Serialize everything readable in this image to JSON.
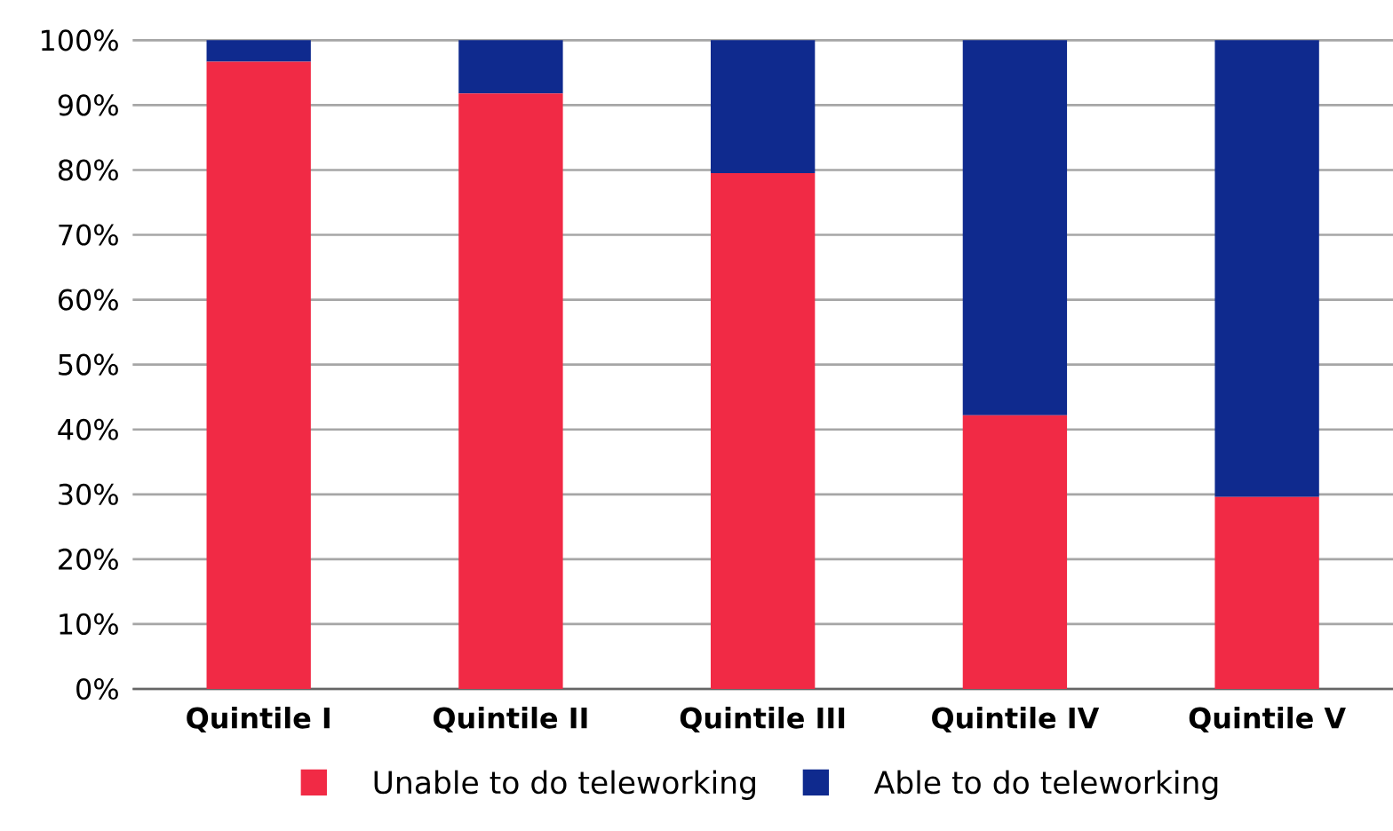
{
  "chart_data": {
    "type": "bar",
    "stacked": true,
    "categories": [
      "Quintile I",
      "Quintile II",
      "Quintile III",
      "Quintile IV",
      "Quintile V"
    ],
    "series": [
      {
        "name": "Unable to do teleworking",
        "color": "#f12a45",
        "values": [
          96.7,
          91.8,
          79.5,
          42.2,
          29.6
        ]
      },
      {
        "name": "Able to do teleworking",
        "color": "#0f2a8e",
        "values": [
          3.3,
          8.2,
          20.5,
          57.8,
          70.4
        ]
      }
    ],
    "ylim": [
      0,
      100
    ],
    "yticks": [
      {
        "value": 0,
        "label": "0%"
      },
      {
        "value": 10,
        "label": "10%"
      },
      {
        "value": 20,
        "label": "20%"
      },
      {
        "value": 30,
        "label": "30%"
      },
      {
        "value": 40,
        "label": "40%"
      },
      {
        "value": 50,
        "label": "50%"
      },
      {
        "value": 60,
        "label": "60%"
      },
      {
        "value": 70,
        "label": "70%"
      },
      {
        "value": 80,
        "label": "80%"
      },
      {
        "value": 90,
        "label": "90%"
      },
      {
        "value": 100,
        "label": "100%"
      }
    ],
    "grid": "y",
    "legend": "bottom"
  }
}
